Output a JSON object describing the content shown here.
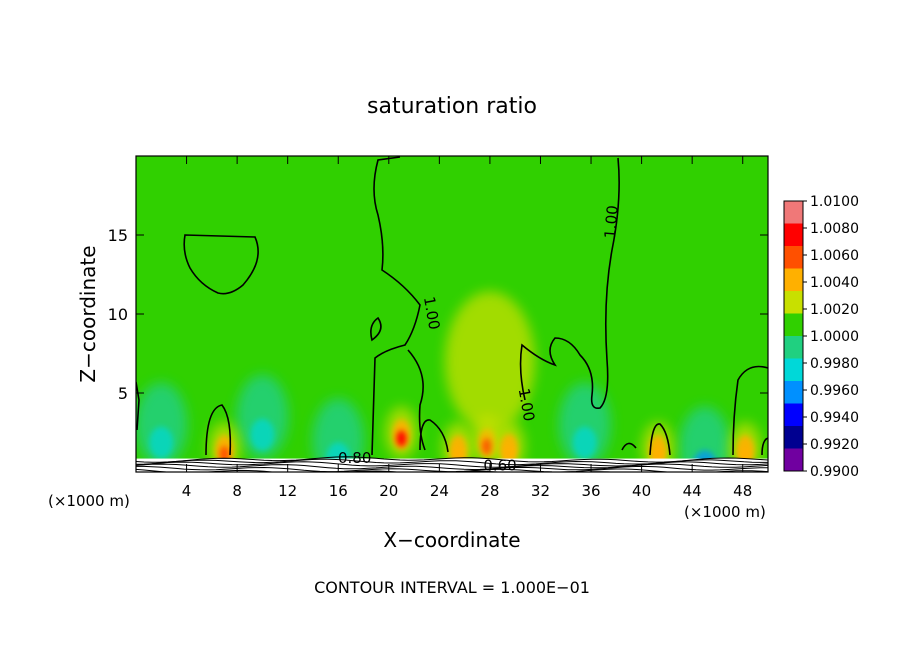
{
  "chart_data": {
    "type": "heatmap",
    "title": "saturation ratio",
    "xlabel": "X−coordinate",
    "ylabel": "Z−coordinate",
    "x_unit_left": "(×1000 m)",
    "x_unit_right": "(×1000 m)",
    "xlim": [
      0,
      50
    ],
    "ylim": [
      0,
      20
    ],
    "x_ticks": [
      4,
      8,
      12,
      16,
      20,
      24,
      28,
      32,
      36,
      40,
      44,
      48
    ],
    "y_ticks": [
      5,
      10,
      15
    ],
    "footer": "CONTOUR INTERVAL = 1.000E−01",
    "colorbar": {
      "levels": [
        "1.0100",
        "1.0080",
        "1.0060",
        "1.0040",
        "1.0020",
        "1.0000",
        "0.9980",
        "0.9960",
        "0.9940",
        "0.9920",
        "0.9900"
      ],
      "colors": [
        "#f07878",
        "#ff0000",
        "#ff5000",
        "#ffb000",
        "#c8e000",
        "#30d000",
        "#20d080",
        "#00d8d8",
        "#0090ff",
        "#0000ff",
        "#000090",
        "#7000a0"
      ]
    },
    "background_value": 1.0,
    "contour_labels": [
      {
        "text": "1.00",
        "x": 23.0,
        "z": 10.0
      },
      {
        "text": "1.00",
        "x": 30.5,
        "z": 4.2
      },
      {
        "text": "1.00",
        "x": 38.0,
        "z": 15.8
      },
      {
        "text": "0.80",
        "x": 17.3,
        "z": 0.9
      },
      {
        "text": "0.60",
        "x": 28.8,
        "z": 0.4
      }
    ],
    "moist_features": [
      {
        "x": 7.0,
        "z": 1.5,
        "peak": 1.007
      },
      {
        "x": 21.0,
        "z": 2.5,
        "peak": 1.008
      },
      {
        "x": 25.5,
        "z": 1.5,
        "peak": 1.005
      },
      {
        "x": 27.8,
        "z": 2.0,
        "peak": 1.006
      },
      {
        "x": 29.5,
        "z": 1.6,
        "peak": 1.004
      },
      {
        "x": 41.3,
        "z": 1.5,
        "peak": 1.005
      },
      {
        "x": 48.2,
        "z": 1.5,
        "peak": 1.004
      },
      {
        "x": 28.0,
        "z": 7.0,
        "peak": 1.002
      }
    ],
    "dry_features": [
      {
        "x": 2.0,
        "z": 3.0,
        "min": 0.997
      },
      {
        "x": 10.0,
        "z": 3.5,
        "min": 0.997
      },
      {
        "x": 16.0,
        "z": 2.0,
        "min": 0.996
      },
      {
        "x": 35.5,
        "z": 3.0,
        "min": 0.997
      },
      {
        "x": 45.0,
        "z": 1.5,
        "min": 0.995
      }
    ]
  }
}
